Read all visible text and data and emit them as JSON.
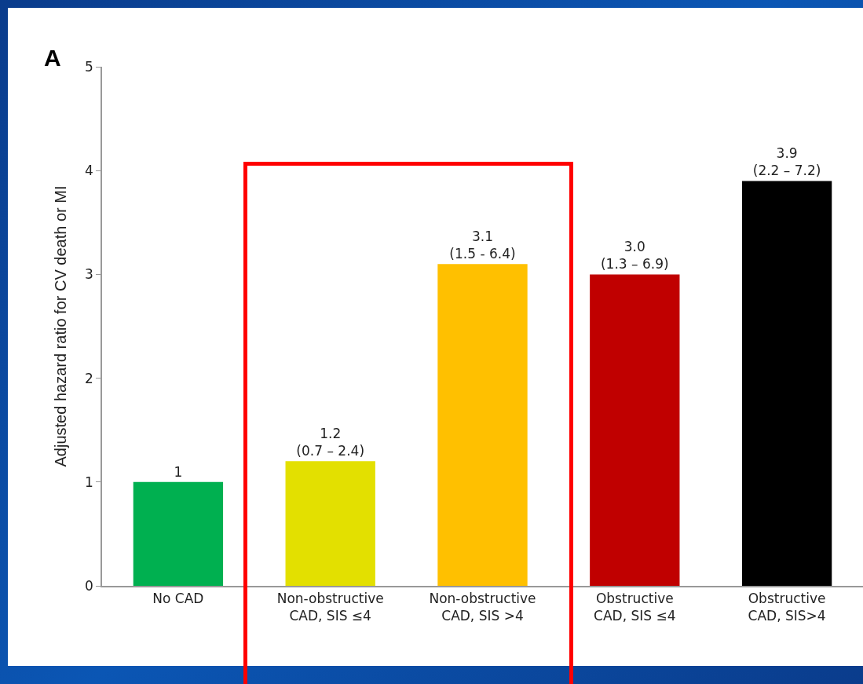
{
  "chart_data": {
    "type": "bar",
    "ylabel": "Adjusted hazard ratio for CV death or MI",
    "annotations": [
      "A"
    ],
    "categories": [
      "No CAD",
      "Non-obstructive CAD, SIS ≤4",
      "Non-obstructive CAD, SIS >4",
      "Obstructive CAD, SIS ≤4",
      "Obstructive CAD, SIS>4"
    ],
    "values": [
      1,
      1.2,
      3.1,
      3.0,
      3.9
    ],
    "colors": [
      "#00b050",
      "#e3e000",
      "#ffc000",
      "#c00000",
      "#000000"
    ],
    "value_labels": [
      "1",
      "1.2\n(0.7 – 2.4)",
      "3.1\n(1.5 - 6.4)",
      "3.0\n(1.3 – 6.9)",
      "3.9\n(2.2 – 7.2)"
    ],
    "ylim": [
      0,
      5
    ],
    "yticks": [
      0,
      1,
      2,
      3,
      4,
      5
    ]
  }
}
